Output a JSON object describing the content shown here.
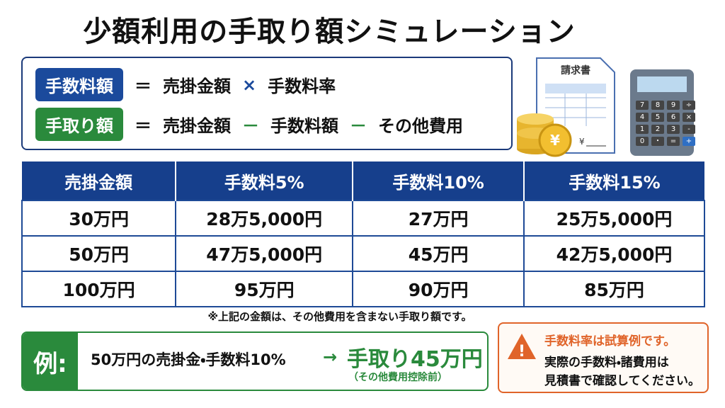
{
  "header": {
    "title": "少額利用の手取り額シミュレーション"
  },
  "formulas": [
    {
      "label": "手数料額",
      "parts": [
        "＝",
        "売掛金額",
        "×",
        "手数料率"
      ]
    },
    {
      "label": "手取り額",
      "parts": [
        "＝",
        "売掛金額",
        "－",
        "手数料額",
        "－",
        "その他費用"
      ]
    }
  ],
  "illustration": {
    "invoice_title": "請求書",
    "invoice_yen": "¥",
    "coin_symbol": "¥",
    "calculator_keys": [
      "7",
      "8",
      "9",
      "÷",
      "4",
      "5",
      "6",
      "×",
      "1",
      "2",
      "3",
      "-",
      "0",
      "・",
      "=",
      "+"
    ]
  },
  "table": {
    "columns": [
      "売掛金額",
      "手数料5%",
      "手数料10%",
      "手数料15%"
    ],
    "rows": [
      [
        "30万円",
        "28万5,000円",
        "27万円",
        "25万5,000円"
      ],
      [
        "50万円",
        "47万5,000円",
        "45万円",
        "42万5,000円"
      ],
      [
        "100万円",
        "95万円",
        "90万円",
        "85万円"
      ]
    ]
  },
  "note": "※上記の金額は、その他費用を含まない手取り額です。",
  "example": {
    "label": "例:",
    "text": "50万円の売掛金・手数料10%",
    "arrow": "→",
    "result": "手取り45万円",
    "sub": "（その他費用控除前）"
  },
  "warning": {
    "icon": "!",
    "title": "手数料率は試算例です。",
    "lines": [
      "実際の手数料・諸費用は",
      "見積書で確認してください。"
    ]
  }
}
